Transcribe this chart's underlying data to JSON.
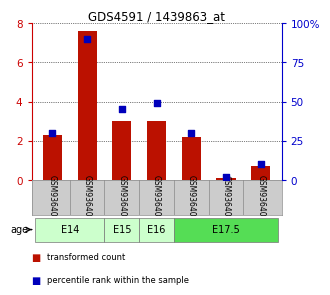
{
  "title": "GDS4591 / 1439863_at",
  "samples": [
    "GSM936403",
    "GSM936404",
    "GSM936405",
    "GSM936402",
    "GSM936400",
    "GSM936401",
    "GSM936406"
  ],
  "transformed_count": [
    2.3,
    7.6,
    3.0,
    3.0,
    2.2,
    0.1,
    0.7
  ],
  "percentile_rank": [
    30,
    90,
    45,
    49,
    30,
    2,
    10
  ],
  "ylim_left": [
    0,
    8
  ],
  "ylim_right": [
    0,
    100
  ],
  "yticks_left": [
    0,
    2,
    4,
    6,
    8
  ],
  "yticks_right": [
    0,
    25,
    50,
    75,
    100
  ],
  "age_groups": [
    {
      "label": "E14",
      "cols": [
        0,
        1
      ],
      "color": "#ccffcc"
    },
    {
      "label": "E15",
      "cols": [
        2
      ],
      "color": "#ccffcc"
    },
    {
      "label": "E16",
      "cols": [
        3
      ],
      "color": "#ccffcc"
    },
    {
      "label": "E17.5",
      "cols": [
        4,
        5,
        6
      ],
      "color": "#55dd55"
    }
  ],
  "bar_color": "#bb1100",
  "dot_color": "#0000bb",
  "bar_width": 0.55,
  "dot_size": 18,
  "legend_items": [
    {
      "color": "#bb1100",
      "label": "transformed count"
    },
    {
      "color": "#0000bb",
      "label": "percentile rank within the sample"
    }
  ],
  "age_label": "age",
  "left_axis_color": "#cc0000",
  "right_axis_color": "#0000cc",
  "grid_color": "#000000",
  "background_color": "#ffffff",
  "sample_area_color": "#cccccc"
}
